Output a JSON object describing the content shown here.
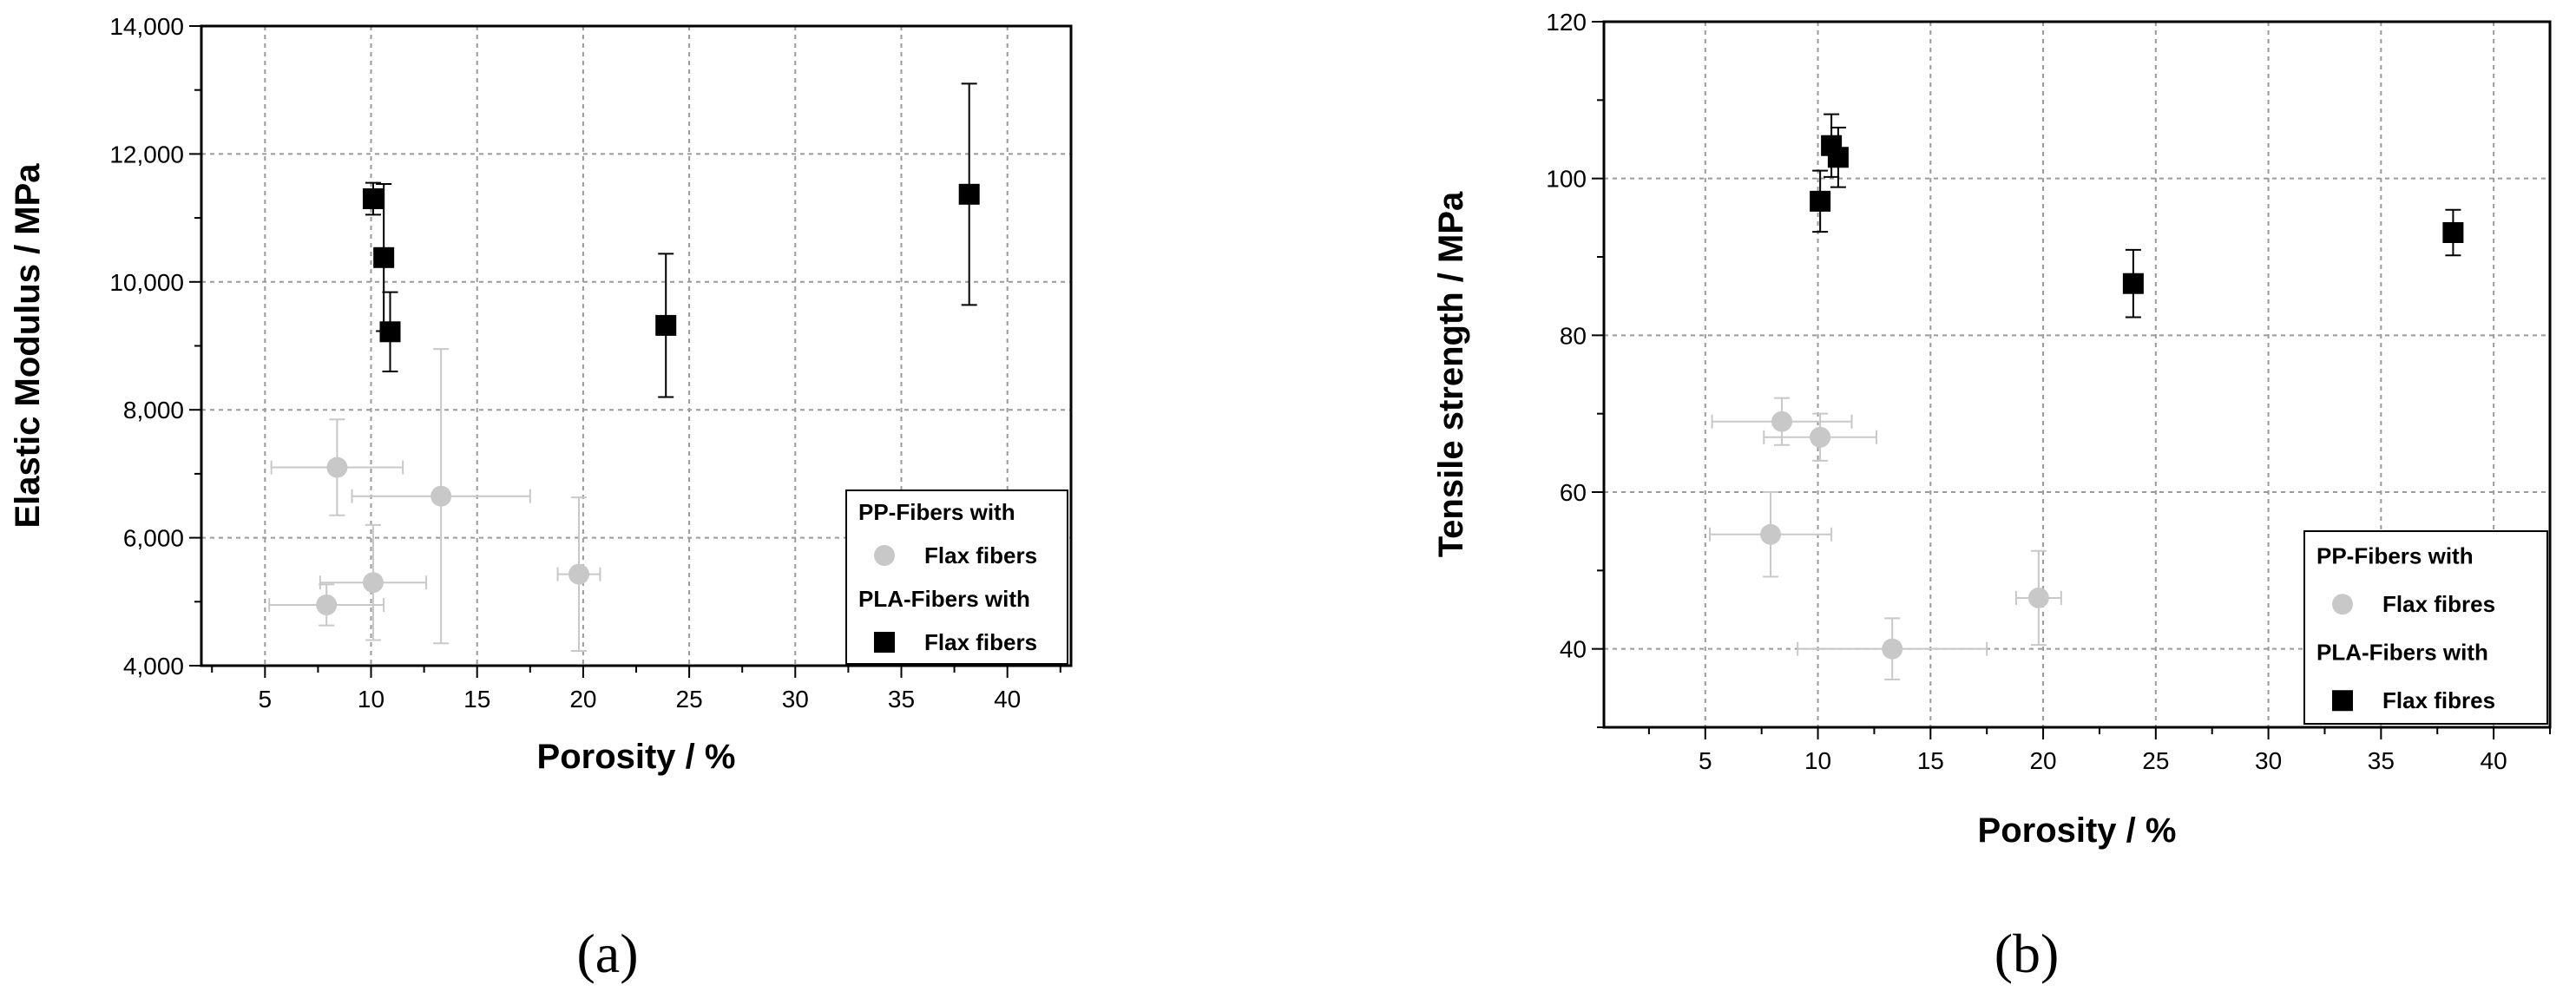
{
  "chart_data": [
    {
      "type": "scatter",
      "panel_label": "(a)",
      "xlabel": "Porosity / %",
      "ylabel": "Elastic Modulus / MPa",
      "xlim": [
        2,
        43
      ],
      "ylim": [
        4000,
        14000
      ],
      "xticks": [
        5,
        10,
        15,
        20,
        25,
        30,
        35,
        40
      ],
      "yticks": [
        4000,
        6000,
        8000,
        10000,
        12000,
        14000
      ],
      "ytick_labels": [
        "4,000",
        "6,000",
        "8,000",
        "10,000",
        "12,000",
        "14,000"
      ],
      "grid": true,
      "legend_placement": "bottom-right",
      "legend": [
        {
          "header": "PP-Fibers with",
          "label": "Flax fibers",
          "series": 0
        },
        {
          "header": "PLA-Fibers with",
          "label": "Flax fibers",
          "series": 1
        }
      ],
      "series": [
        {
          "marker": "circle",
          "color": "#c8c8c8",
          "points": [
            {
              "x": 8.4,
              "y": 7100,
              "xerr": 3.1,
              "yerr": 750
            },
            {
              "x": 13.3,
              "y": 6650,
              "xerr": 4.2,
              "yerr": 2300
            },
            {
              "x": 10.1,
              "y": 5300,
              "xerr": 2.5,
              "yerr": 900
            },
            {
              "x": 7.9,
              "y": 4950,
              "xerr": 2.7,
              "yerr": 320
            },
            {
              "x": 19.8,
              "y": 5430,
              "xerr": 1.0,
              "yerr": 1200
            }
          ]
        },
        {
          "marker": "square",
          "color": "#000000",
          "points": [
            {
              "x": 10.1,
              "y": 11300,
              "xerr": 0,
              "yerr": 250
            },
            {
              "x": 10.6,
              "y": 10380,
              "xerr": 0,
              "yerr": 1150
            },
            {
              "x": 10.9,
              "y": 9220,
              "xerr": 0,
              "yerr": 620
            },
            {
              "x": 23.9,
              "y": 9320,
              "xerr": 0,
              "yerr": 1120
            },
            {
              "x": 38.2,
              "y": 11370,
              "xerr": 0,
              "yerr": 1730
            }
          ]
        }
      ]
    },
    {
      "type": "scatter",
      "panel_label": "(b)",
      "xlabel": "Porosity / %",
      "ylabel": "Tensile strength / MPa",
      "xlim": [
        0.5,
        42.5
      ],
      "ylim": [
        30,
        120
      ],
      "xticks": [
        5,
        10,
        15,
        20,
        25,
        30,
        35,
        40
      ],
      "yticks": [
        40,
        60,
        80,
        100,
        120
      ],
      "ytick_labels": [
        "40",
        "60",
        "80",
        "100",
        "120"
      ],
      "grid": true,
      "legend_placement": "bottom-right",
      "legend": [
        {
          "header": "PP-Fibers with",
          "label": "Flax fibres",
          "series": 0
        },
        {
          "header": "PLA-Fibers with",
          "label": "Flax fibres",
          "series": 1
        }
      ],
      "series": [
        {
          "marker": "circle",
          "color": "#c8c8c8",
          "points": [
            {
              "x": 8.4,
              "y": 69,
              "xerr": 3.1,
              "yerr": 3
            },
            {
              "x": 10.1,
              "y": 67,
              "xerr": 2.5,
              "yerr": 3
            },
            {
              "x": 7.9,
              "y": 54.6,
              "xerr": 2.7,
              "yerr": 5.4
            },
            {
              "x": 13.3,
              "y": 40,
              "xerr": 4.2,
              "yerr": 3.9
            },
            {
              "x": 19.8,
              "y": 46.5,
              "xerr": 1.0,
              "yerr": 6
            }
          ]
        },
        {
          "marker": "square",
          "color": "#000000",
          "points": [
            {
              "x": 10.6,
              "y": 104.2,
              "xerr": 0,
              "yerr": 4
            },
            {
              "x": 10.9,
              "y": 102.7,
              "xerr": 0,
              "yerr": 3.8
            },
            {
              "x": 10.1,
              "y": 97.1,
              "xerr": 0,
              "yerr": 3.9
            },
            {
              "x": 24.0,
              "y": 86.6,
              "xerr": 0,
              "yerr": 4.3
            },
            {
              "x": 38.2,
              "y": 93.1,
              "xerr": 0,
              "yerr": 2.9
            }
          ]
        }
      ]
    }
  ]
}
